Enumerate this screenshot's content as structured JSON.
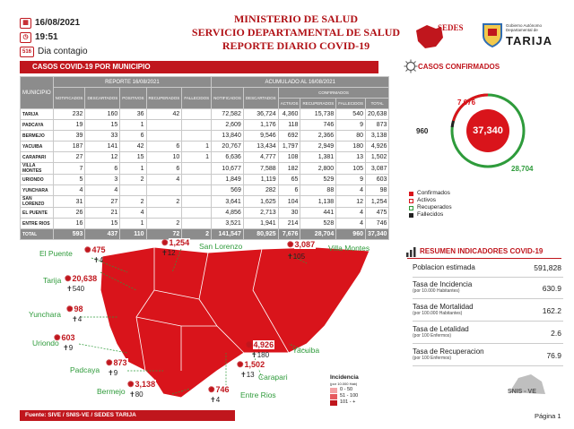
{
  "header": {
    "date": "16/08/2021",
    "time": "19:51",
    "day_badge": "516",
    "day_label": "Dia contagio",
    "title_line1": "MINISTERIO DE SALUD",
    "title_line2": "SERVICIO DEPARTAMENTAL DE SALUD",
    "title_line3": "REPORTE DIARIO COVID-19",
    "sedes_logo": "SEDES",
    "tarija_logo_top": "Gobierno Autónomo Departamental de",
    "tarija_logo": "TARIJA"
  },
  "sections": {
    "municipio_title": "CASOS COVID-19 POR MUNICIPIO",
    "confirmados_title": "CASOS CONFIRMADOS",
    "indicadores_title": "RESUMEN INDICADORES COVID-19"
  },
  "table": {
    "col_municipio": "MUNICIPIO",
    "group_reporte": "REPORTE 16/08/2021",
    "group_acumulado": "ACUMULADO AL 16/08/2021",
    "group_confirmados": "CONFIRMADOS",
    "reporte_headers": [
      "NOTIFICADOS",
      "DESCARTADOS",
      "POSITIVOS",
      "RECUPERADOS",
      "FALLECIDOS"
    ],
    "acum_headers": [
      "NOTIFICADOS",
      "DESCARTADOS",
      "ACTIVOS",
      "RECUPERADOS",
      "FALLECIDOS",
      "TOTAL"
    ],
    "rows": [
      {
        "name": "TARIJA",
        "r": [
          "232",
          "160",
          "36",
          "42",
          ""
        ],
        "a": [
          "72,582",
          "36,724",
          "4,360",
          "15,738",
          "540",
          "20,638"
        ]
      },
      {
        "name": "PADCAYA",
        "r": [
          "19",
          "15",
          "1",
          "",
          ""
        ],
        "a": [
          "2,609",
          "1,176",
          "118",
          "746",
          "9",
          "873"
        ]
      },
      {
        "name": "BERMEJO",
        "r": [
          "39",
          "33",
          "6",
          "",
          ""
        ],
        "a": [
          "13,840",
          "9,546",
          "692",
          "2,366",
          "80",
          "3,138"
        ]
      },
      {
        "name": "YACUIBA",
        "r": [
          "187",
          "141",
          "42",
          "6",
          "1"
        ],
        "a": [
          "20,767",
          "13,434",
          "1,797",
          "2,949",
          "180",
          "4,926"
        ]
      },
      {
        "name": "CARAPARI",
        "r": [
          "27",
          "12",
          "15",
          "10",
          "1"
        ],
        "a": [
          "6,636",
          "4,777",
          "108",
          "1,381",
          "13",
          "1,502"
        ]
      },
      {
        "name": "VILLA MONTES",
        "r": [
          "7",
          "6",
          "1",
          "6",
          ""
        ],
        "a": [
          "10,677",
          "7,588",
          "182",
          "2,800",
          "105",
          "3,087"
        ]
      },
      {
        "name": "URIONDO",
        "r": [
          "5",
          "3",
          "2",
          "4",
          ""
        ],
        "a": [
          "1,849",
          "1,119",
          "65",
          "529",
          "9",
          "603"
        ]
      },
      {
        "name": "YUNCHARA",
        "r": [
          "4",
          "4",
          "",
          "",
          ""
        ],
        "a": [
          "569",
          "282",
          "6",
          "88",
          "4",
          "98"
        ]
      },
      {
        "name": "SAN LORENZO",
        "r": [
          "31",
          "27",
          "2",
          "2",
          ""
        ],
        "a": [
          "3,641",
          "1,625",
          "104",
          "1,138",
          "12",
          "1,254"
        ]
      },
      {
        "name": "EL PUENTE",
        "r": [
          "26",
          "21",
          "4",
          "",
          ""
        ],
        "a": [
          "4,856",
          "2,713",
          "30",
          "441",
          "4",
          "475"
        ]
      },
      {
        "name": "ENTRE RIOS",
        "r": [
          "16",
          "15",
          "1",
          "2",
          ""
        ],
        "a": [
          "3,521",
          "1,941",
          "214",
          "528",
          "4",
          "746"
        ]
      }
    ],
    "total": {
      "name": "TOTAL",
      "r": [
        "593",
        "437",
        "110",
        "72",
        "2"
      ],
      "a": [
        "141,547",
        "80,925",
        "7,676",
        "28,704",
        "960",
        "37,340"
      ]
    }
  },
  "donut": {
    "total": "37,340",
    "activos": "7,676",
    "fallecidos": "960",
    "recuperados": "28,704",
    "colors": {
      "confirmados": "#d9141b",
      "activos": "#d9141b",
      "recuperados": "#2e9b3b",
      "fallecidos": "#222222"
    }
  },
  "legend": {
    "confirmados": "Confirmados",
    "activos": "Activos",
    "recuperados": "Recuperados",
    "fallecidos": "Fallecidos"
  },
  "indicators": [
    {
      "label": "Poblacion estimada",
      "sub": "",
      "value": "591,828"
    },
    {
      "label": "Tasa de Incidencia",
      "sub": "(por 10.000 Habitantes)",
      "value": "630.9"
    },
    {
      "label": "Tasa de Mortalidad",
      "sub": "(por 100.000 Habitantes)",
      "value": "162.2"
    },
    {
      "label": "Tasa de Letalidad",
      "sub": "(por 100 Enfermos)",
      "value": "2.6"
    },
    {
      "label": "Tasa de Recuperacion",
      "sub": "(por 100 Enfermos)",
      "value": "76.9"
    }
  ],
  "map": {
    "el_puente": {
      "name": "El Puente",
      "cases": "475",
      "deaths": "4"
    },
    "san_lorenzo": {
      "name": "San Lorenzo",
      "cases": "1,254",
      "deaths": "12"
    },
    "villa_montes": {
      "name": "Villa Montes",
      "cases": "3,087",
      "deaths": "105"
    },
    "tarija": {
      "name": "Tarija",
      "cases": "20,638",
      "deaths": "540"
    },
    "yunchara": {
      "name": "Yunchara",
      "cases": "98",
      "deaths": "4"
    },
    "uriondo": {
      "name": "Uriondo",
      "cases": "603",
      "deaths": "9"
    },
    "padcaya": {
      "name": "Padcaya",
      "cases": "873",
      "deaths": "9"
    },
    "bermejo": {
      "name": "Bermejo",
      "cases": "3,138",
      "deaths": "80"
    },
    "yacuiba": {
      "name": "Yacuiba",
      "cases": "4,926",
      "deaths": "180"
    },
    "carapari": {
      "name": "Carapari",
      "cases": "1,502",
      "deaths": "13"
    },
    "entre_rios": {
      "name": "Entre Rios",
      "cases": "746",
      "deaths": "4"
    }
  },
  "incidence_legend": {
    "title": "Incidencia",
    "subtitle": "(por 10.000 Hab)",
    "ranges": [
      "0 - 50",
      "51 - 100",
      "101 - +"
    ]
  },
  "snis_logo": "SNIS - VE",
  "footer": {
    "source": "Fuente: SIVE / SNIS-VE / SEDES TARIJA",
    "page": "Página 1"
  }
}
